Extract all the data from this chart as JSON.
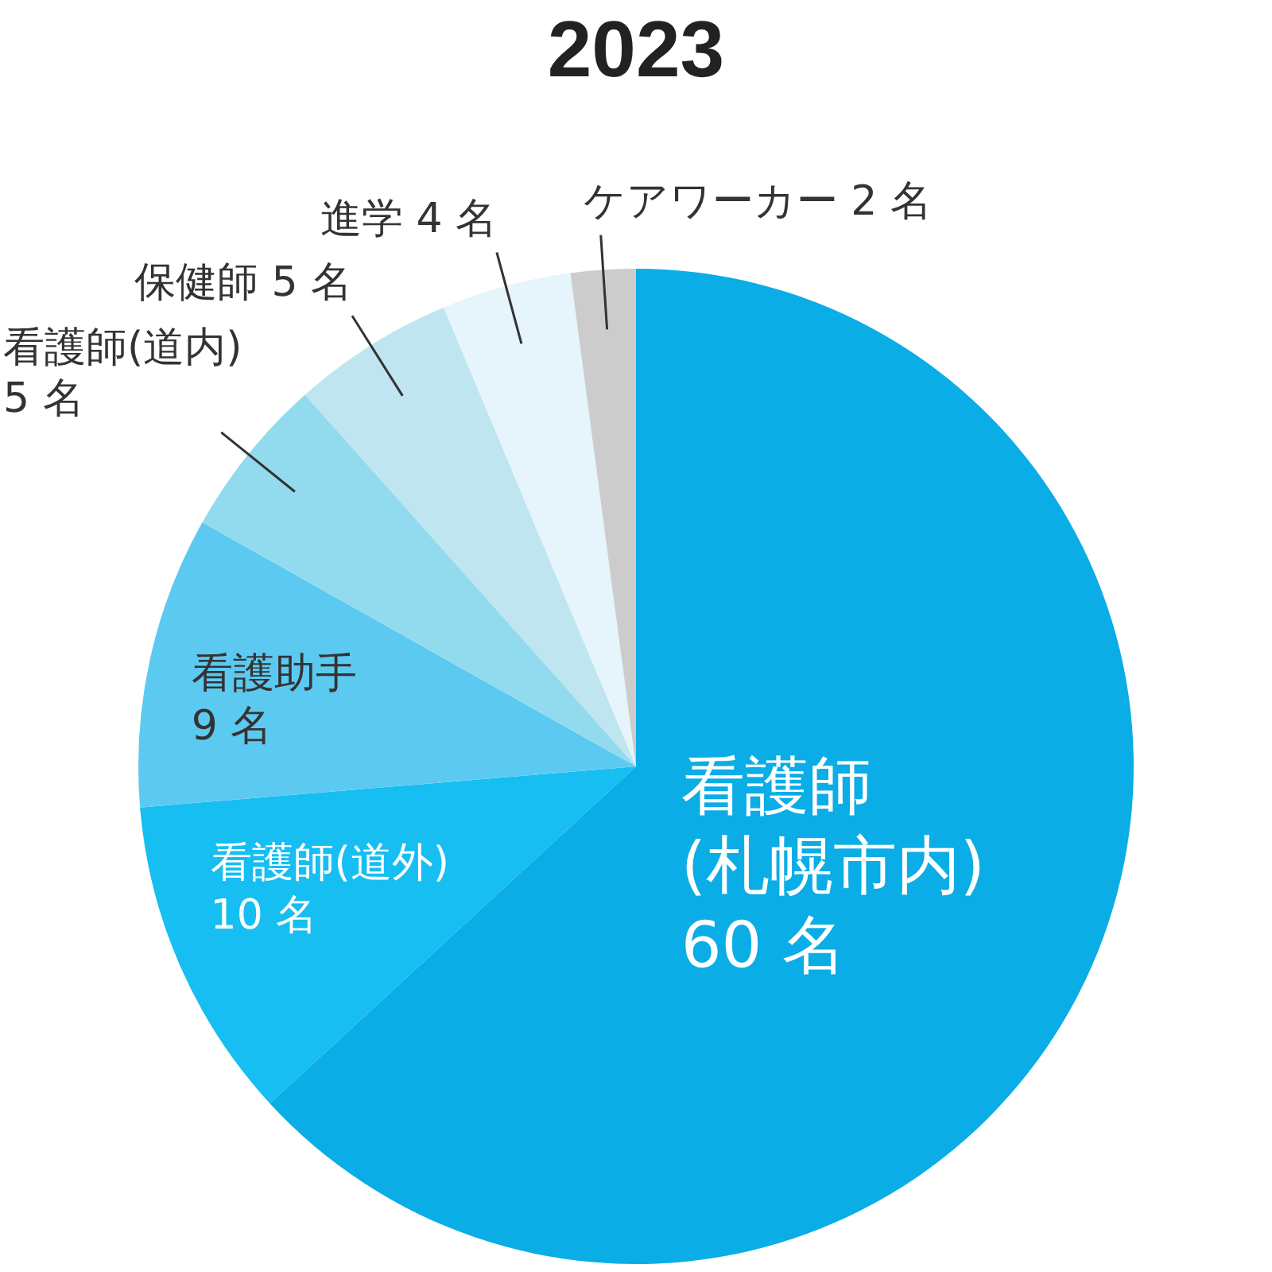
{
  "chart_data": {
    "type": "pie",
    "title": "2023",
    "categories": [
      "看護師(札幌市内)",
      "看護師(道外)",
      "看護助手",
      "看護師(道内)",
      "保健師",
      "進学",
      "ケアワーカー"
    ],
    "values": [
      60,
      10,
      9,
      5,
      5,
      4,
      2
    ],
    "value_labels": [
      "60 名",
      "10 名",
      "9 名",
      "5 名",
      "5 名",
      "4 名",
      "2 名"
    ],
    "colors": [
      "#0aade6",
      "#16bef2",
      "#5ccaf0",
      "#92dbef",
      "#bfe5f0",
      "#e6f4fb",
      "#cccccc"
    ]
  }
}
